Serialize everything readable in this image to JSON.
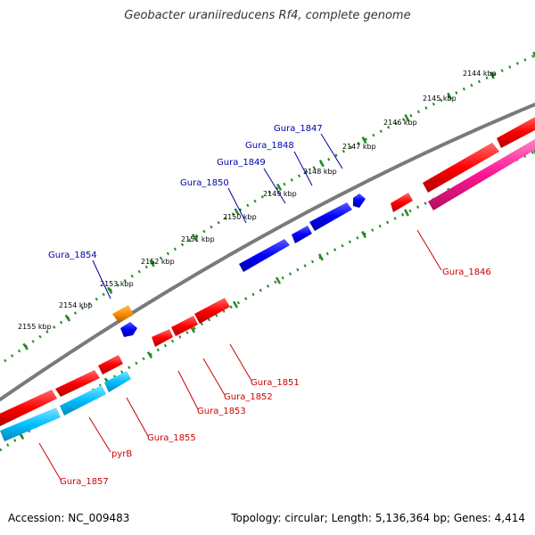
{
  "title": "Geobacter uraniireducens Rf4, complete genome",
  "footer": {
    "accession": "Accession: NC_009483",
    "summary": "Topology: circular; Length: 5,136,364 bp; Genes: 4,414"
  },
  "colors": {
    "backbone": "#7a7a7a",
    "tick_dots": "#228b22",
    "forward_cds": "#ff0000",
    "reverse_cds": "#0000ff",
    "rna_gene": "#ff8c00",
    "reverse_other": "#00bfff",
    "forward_other": "#ff1493",
    "forward_label": "#cc0000",
    "reverse_label": "#0000aa"
  },
  "kbp_labels": [
    "2144 kbp",
    "2145 kbp",
    "2146 kbp",
    "2147 kbp",
    "2148 kbp",
    "2149 kbp",
    "2150 kbp",
    "2151 kbp",
    "2152 kbp",
    "2153 kbp",
    "2154 kbp",
    "2155 kbp"
  ],
  "reverse_gene_labels": [
    "Gura_1847",
    "Gura_1848",
    "Gura_1849",
    "Gura_1850",
    "Gura_1854"
  ],
  "forward_gene_labels": [
    "Gura_1846",
    "Gura_1851",
    "Gura_1852",
    "Gura_1853",
    "Gura_1855",
    "pyrB",
    "Gura_1857"
  ]
}
